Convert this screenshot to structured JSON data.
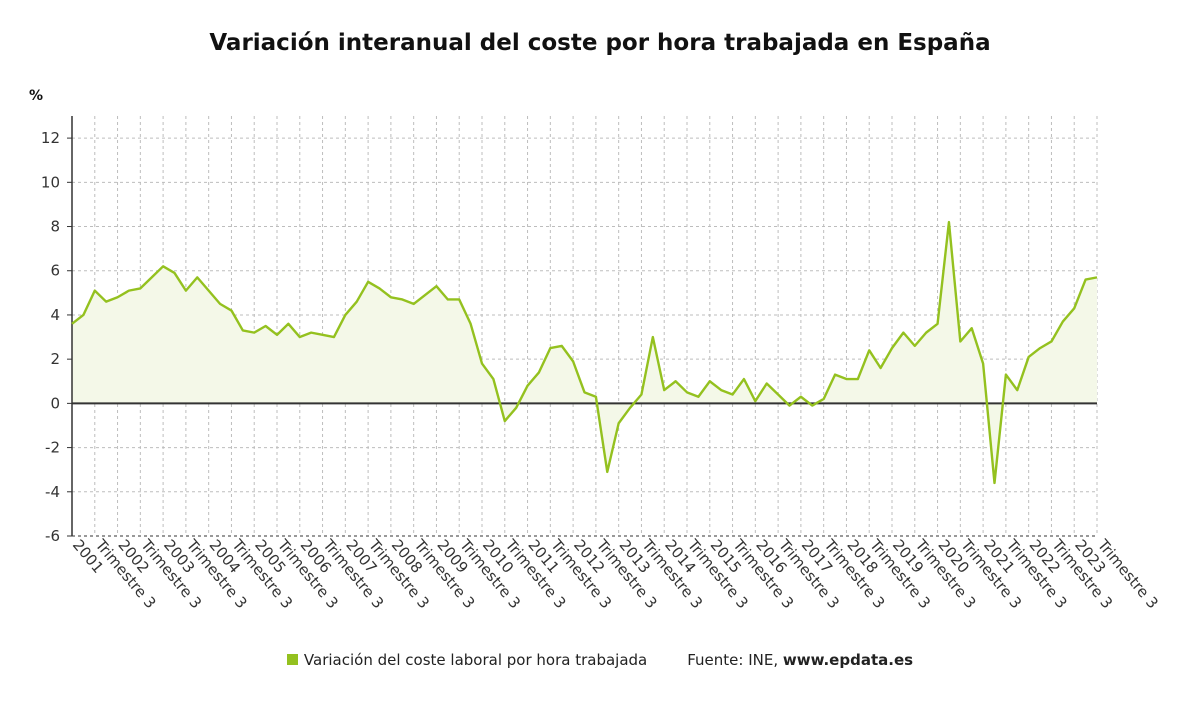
{
  "colors": {
    "series": "#94c11f",
    "fill": "#f4f8e8",
    "grid": "#bdbdbd",
    "zero": "#333333"
  },
  "legend": {
    "series_label": "Variación del coste laboral por hora trabajada",
    "source_prefix": "Fuente: INE, ",
    "source_site": "www.epdata.es"
  },
  "chart_data": {
    "type": "line",
    "title": "Variación interanual del coste por hora trabajada en España",
    "ylabel": "%",
    "ylim": [
      -6,
      13
    ],
    "yticks": [
      -6,
      -4,
      -2,
      0,
      2,
      4,
      6,
      8,
      10,
      12
    ],
    "grid": true,
    "legend_position": "bottom",
    "x_tick_labels": [
      "2001",
      "Trimestre 3",
      "2002",
      "Trimestre 3",
      "2003",
      "Trimestre 3",
      "2004",
      "Trimestre 3",
      "2005",
      "Trimestre 3",
      "2006",
      "Trimestre 3",
      "2007",
      "Trimestre 3",
      "2008",
      "Trimestre 3",
      "2009",
      "Trimestre 3",
      "2010",
      "Trimestre 3",
      "2011",
      "Trimestre 3",
      "2012",
      "Trimestre 3",
      "2013",
      "Trimestre 3",
      "2014",
      "Trimestre 3",
      "2015",
      "Trimestre 3",
      "2016",
      "Trimestre 3",
      "2017",
      "Trimestre 3",
      "2018",
      "Trimestre 3",
      "2019",
      "Trimestre 3",
      "2020",
      "Trimestre 3",
      "2021",
      "Trimestre 3",
      "2022",
      "Trimestre 3",
      "2023",
      "Trimestre 3"
    ],
    "series": [
      {
        "values": [
          3.6,
          4.0,
          5.1,
          4.6,
          4.8,
          5.1,
          5.2,
          5.7,
          6.2,
          5.9,
          5.1,
          5.7,
          5.1,
          4.5,
          4.2,
          3.3,
          3.2,
          3.5,
          3.1,
          3.6,
          3.0,
          3.2,
          3.1,
          3.0,
          4.0,
          4.6,
          5.5,
          5.2,
          4.8,
          4.7,
          4.5,
          4.9,
          5.3,
          4.7,
          4.7,
          3.6,
          1.8,
          1.1,
          -0.8,
          -0.2,
          0.8,
          1.4,
          2.5,
          2.6,
          1.9,
          0.5,
          0.3,
          -3.1,
          -0.9,
          -0.2,
          0.4,
          3.0,
          0.6,
          1.0,
          0.5,
          0.3,
          1.0,
          0.6,
          0.4,
          1.1,
          0.1,
          0.9,
          0.4,
          -0.1,
          0.3,
          -0.1,
          0.2,
          1.3,
          1.1,
          1.1,
          2.4,
          1.6,
          2.5,
          3.2,
          2.6,
          3.2,
          3.6,
          8.2,
          2.8,
          3.4,
          1.8,
          -3.6,
          1.3,
          0.6,
          2.1,
          2.5,
          2.8,
          3.7,
          4.3,
          5.6,
          5.7
        ]
      }
    ]
  }
}
